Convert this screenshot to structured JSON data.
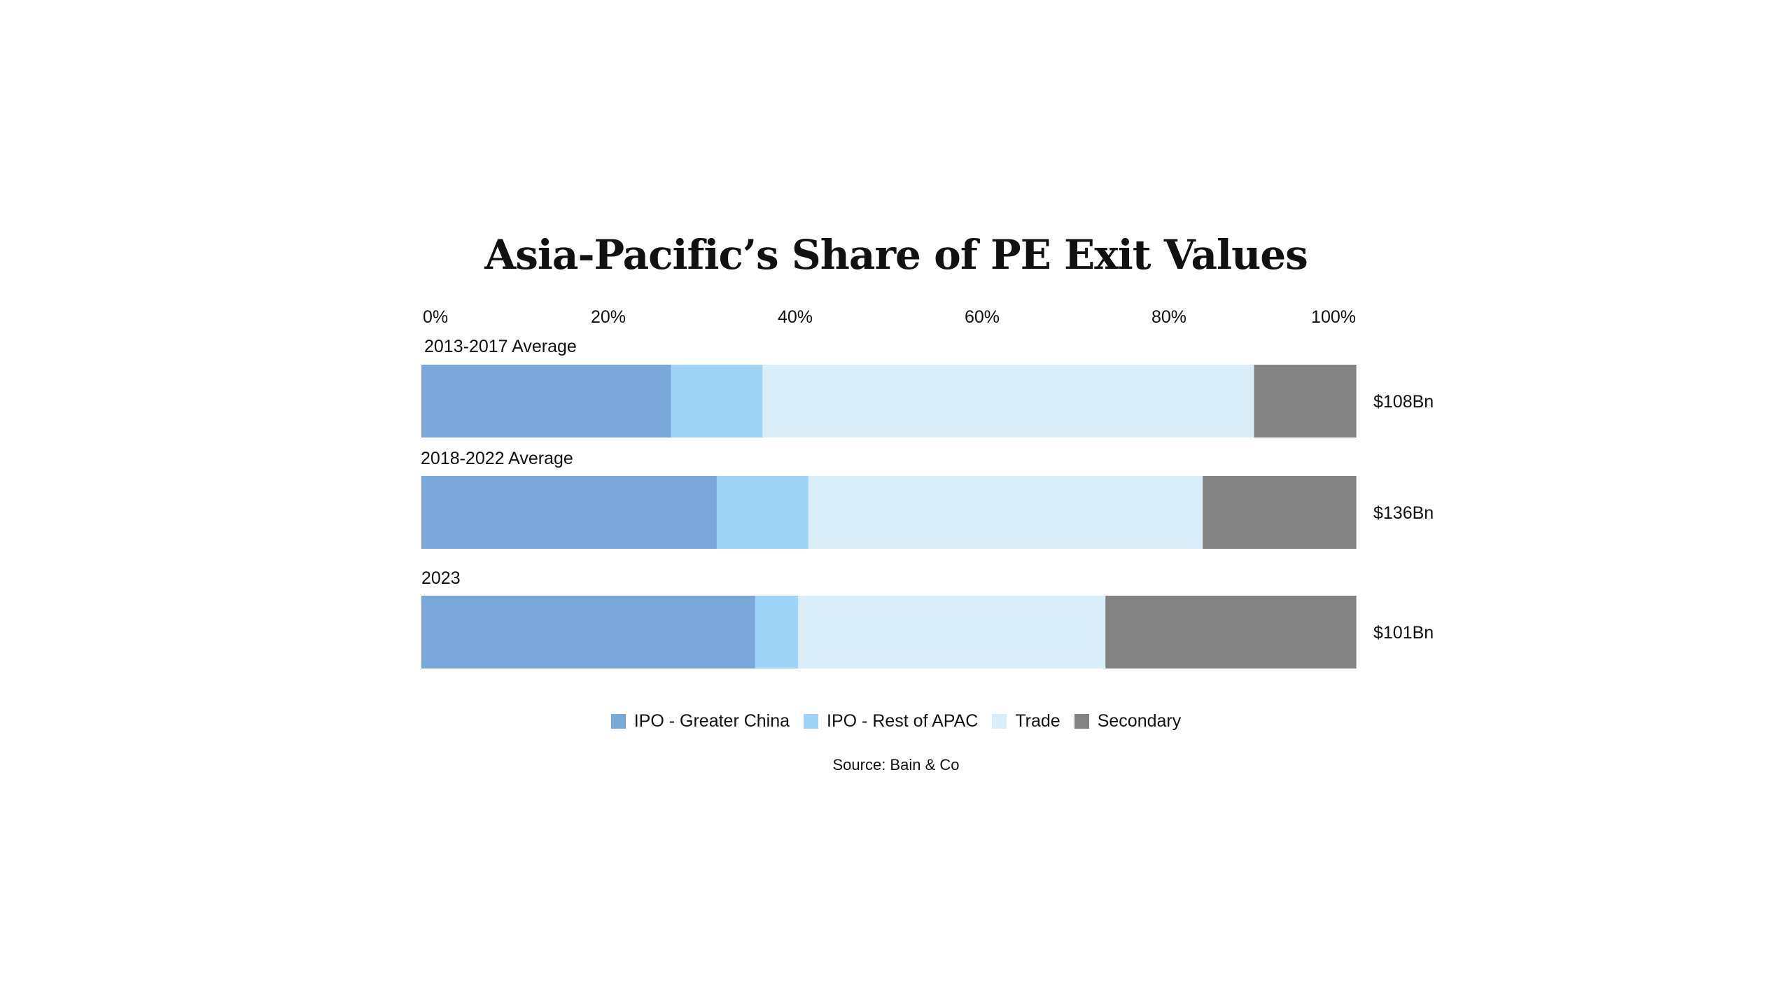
{
  "chart_data": {
    "type": "bar",
    "orientation": "horizontal",
    "stacked": true,
    "normalized": true,
    "title": "Asia-Pacific’s Share of PE Exit Values",
    "xlim": [
      0,
      100
    ],
    "x_ticks": [
      "0%",
      "20%",
      "40%",
      "60%",
      "80%",
      "100%"
    ],
    "categories": [
      "2013-2017 Average",
      "2018-2022 Average",
      "2023"
    ],
    "totals": [
      "$108Bn",
      "$136Bn",
      "$101Bn"
    ],
    "series": [
      {
        "name": "IPO - Greater China",
        "color": "#79a7d9",
        "values": [
          26.7,
          31.6,
          35.7
        ]
      },
      {
        "name": "IPO - Rest of APAC",
        "color": "#9dd4f8",
        "values": [
          9.8,
          9.8,
          4.6
        ]
      },
      {
        "name": "Trade",
        "color": "#d9eef8",
        "values": [
          52.6,
          42.2,
          32.9
        ]
      },
      {
        "name": "Secondary",
        "color": "#838383",
        "values": [
          10.9,
          16.4,
          26.8
        ]
      }
    ],
    "legend_position": "bottom",
    "grid": false,
    "source": "Source: Bain & Co"
  }
}
